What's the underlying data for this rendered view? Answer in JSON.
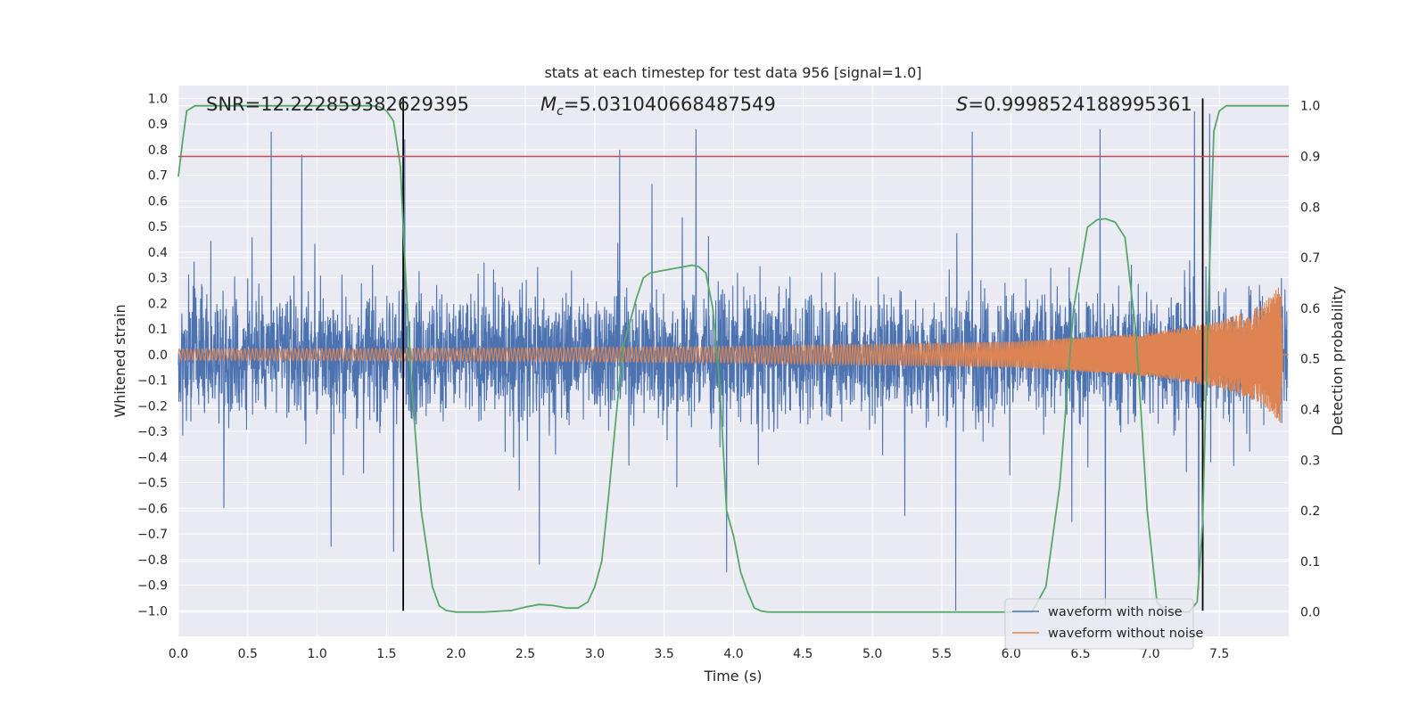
{
  "chart_data": {
    "type": "line",
    "title": "stats at each timestep for test data 956 [signal=1.0]",
    "xlabel": "Time (s)",
    "ylabel": "Whitened strain",
    "y2label": "Detection probability",
    "xlim": [
      0,
      8
    ],
    "ylim": [
      -1.1,
      1.05
    ],
    "y2lim": [
      -0.048,
      1.04
    ],
    "x_ticks": [
      0.0,
      0.5,
      1.0,
      1.5,
      2.0,
      2.5,
      3.0,
      3.5,
      4.0,
      4.5,
      5.0,
      5.5,
      6.0,
      6.5,
      7.0,
      7.5
    ],
    "x_tick_labels": [
      "0.0",
      "0.5",
      "1.0",
      "1.5",
      "2.0",
      "2.5",
      "3.0",
      "3.5",
      "4.0",
      "4.5",
      "5.0",
      "5.5",
      "6.0",
      "6.5",
      "7.0",
      "7.5"
    ],
    "y_ticks": [
      1.0,
      0.9,
      0.8,
      0.7,
      0.6,
      0.5,
      0.4,
      0.3,
      0.2,
      0.1,
      0.0,
      -0.1,
      -0.2,
      -0.3,
      -0.4,
      -0.5,
      -0.6,
      -0.7,
      -0.8,
      -0.9,
      -1.0
    ],
    "y_tick_labels": [
      "1.0",
      "0.9",
      "0.8",
      "0.7",
      "0.6",
      "0.5",
      "0.4",
      "0.3",
      "0.2",
      "0.1",
      "0.0",
      "−0.1",
      "−0.2",
      "−0.3",
      "−0.4",
      "−0.5",
      "−0.6",
      "−0.7",
      "−0.8",
      "−0.9",
      "−1.0"
    ],
    "y2_ticks": [
      1.0,
      0.9,
      0.8,
      0.7,
      0.6,
      0.5,
      0.4,
      0.3,
      0.2,
      0.1,
      0.0
    ],
    "y2_tick_labels": [
      "1.0",
      "0.9",
      "0.8",
      "0.7",
      "0.6",
      "0.5",
      "0.4",
      "0.3",
      "0.2",
      "0.1",
      "0.0"
    ],
    "grid": true,
    "annotations": {
      "snr": "SNR=12.222859382629395",
      "mc_symbol": "M",
      "mc_subscript": "c",
      "mc_value": "=5.031040668487549",
      "s_symbol": "S",
      "s_value": "=0.9998524188995361"
    },
    "legend": {
      "placement": "lower-right",
      "entries": [
        {
          "label": "waveform with noise",
          "color": "#4c72b0"
        },
        {
          "label": "waveform without noise",
          "color": "#dd8452"
        }
      ]
    },
    "threshold_line": {
      "axis": "y2",
      "value": 0.9,
      "color": "#c44e52"
    },
    "vertical_markers": {
      "x": [
        1.62,
        7.38
      ],
      "y_range": [
        -1.0,
        1.0
      ],
      "color": "#000000"
    },
    "noisy_waveform": {
      "color": "#4c72b0",
      "x_range": [
        0,
        7.99
      ],
      "amplitude_typical": 0.45,
      "extremes": [
        {
          "x": 0.67,
          "y": 0.87
        },
        {
          "x": 0.89,
          "y": 0.78
        },
        {
          "x": 1.63,
          "y": 0.84
        },
        {
          "x": 3.73,
          "y": 0.88
        },
        {
          "x": 3.18,
          "y": 0.8
        },
        {
          "x": 5.72,
          "y": 0.87
        },
        {
          "x": 6.64,
          "y": 0.88
        },
        {
          "x": 7.32,
          "y": 0.95
        },
        {
          "x": 7.43,
          "y": 0.94
        },
        {
          "x": 1.1,
          "y": -0.75
        },
        {
          "x": 1.55,
          "y": -0.77
        },
        {
          "x": 2.6,
          "y": -0.82
        },
        {
          "x": 3.95,
          "y": -0.85
        },
        {
          "x": 5.6,
          "y": -1.0
        },
        {
          "x": 6.68,
          "y": -0.98
        },
        {
          "x": 7.35,
          "y": -0.92
        }
      ]
    },
    "clean_waveform": {
      "color": "#dd8452",
      "description_points": [
        {
          "x": 0.0,
          "amplitude": 0.022
        },
        {
          "x": 2.0,
          "amplitude": 0.025
        },
        {
          "x": 4.0,
          "amplitude": 0.032
        },
        {
          "x": 6.0,
          "amplitude": 0.05
        },
        {
          "x": 7.0,
          "amplitude": 0.085
        },
        {
          "x": 7.5,
          "amplitude": 0.13
        },
        {
          "x": 7.8,
          "amplitude": 0.19
        },
        {
          "x": 7.94,
          "amplitude": 0.27
        },
        {
          "x": 7.96,
          "amplitude": 0.0
        }
      ]
    },
    "detection_probability": {
      "color": "#55a868",
      "x": [
        0.0,
        0.03,
        0.06,
        0.12,
        0.2,
        0.5,
        1.0,
        1.3,
        1.4,
        1.45,
        1.5,
        1.55,
        1.6,
        1.63,
        1.68,
        1.75,
        1.83,
        1.88,
        1.93,
        2.0,
        2.2,
        2.4,
        2.5,
        2.6,
        2.7,
        2.8,
        2.88,
        2.95,
        3.0,
        3.05,
        3.1,
        3.2,
        3.3,
        3.35,
        3.4,
        3.5,
        3.6,
        3.7,
        3.75,
        3.8,
        3.85,
        3.9,
        3.95,
        4.0,
        4.05,
        4.1,
        4.15,
        4.2,
        4.25,
        4.3,
        5.0,
        6.0,
        6.15,
        6.25,
        6.35,
        6.45,
        6.55,
        6.62,
        6.68,
        6.75,
        6.82,
        6.9,
        6.98,
        7.05,
        7.12,
        7.2,
        7.28,
        7.34,
        7.38,
        7.42,
        7.46,
        7.5,
        7.55,
        7.6,
        8.0
      ],
      "y": [
        0.86,
        0.93,
        0.99,
        1.0,
        1.0,
        1.0,
        1.0,
        1.0,
        1.0,
        0.998,
        0.99,
        0.97,
        0.88,
        0.7,
        0.45,
        0.2,
        0.05,
        0.012,
        0.003,
        0.0,
        0.0,
        0.003,
        0.01,
        0.015,
        0.013,
        0.008,
        0.008,
        0.02,
        0.05,
        0.1,
        0.23,
        0.52,
        0.62,
        0.66,
        0.67,
        0.675,
        0.68,
        0.685,
        0.682,
        0.67,
        0.6,
        0.45,
        0.2,
        0.15,
        0.08,
        0.04,
        0.008,
        0.002,
        0.0,
        0.0,
        0.0,
        0.0,
        0.0,
        0.05,
        0.25,
        0.6,
        0.76,
        0.775,
        0.777,
        0.77,
        0.74,
        0.55,
        0.2,
        0.02,
        0.0,
        0.0,
        0.0,
        0.02,
        0.18,
        0.6,
        0.95,
        0.99,
        1.0,
        1.0,
        1.0
      ]
    }
  }
}
